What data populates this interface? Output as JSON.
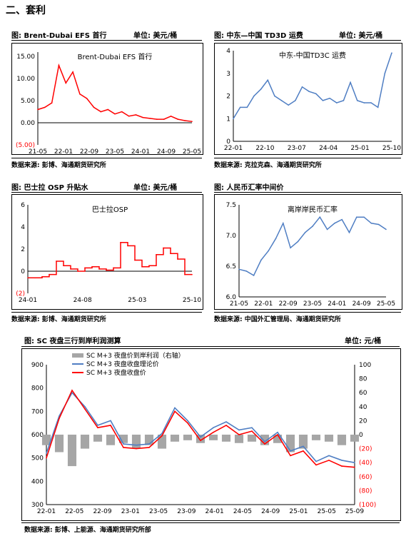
{
  "section_title": "二、套利",
  "panels": {
    "p1": {
      "caption": "图: Brent-Dubai EFS 首行",
      "unit": "单位: 美元/桶",
      "source": "数据来源: 彭博、海通期货研究所"
    },
    "p2": {
      "caption": "图: 中东—中国 TD3D 运费",
      "unit": "单位: 美元/桶",
      "source": "数据来源: 克拉克森、海通期货研究所"
    },
    "p3": {
      "caption": "图: 巴士拉 OSP 升贴水",
      "unit": "单位: 美元/桶",
      "source": "数据来源: 彭博、海通期货研究所"
    },
    "p4": {
      "caption": "图: 人民币汇率中间价",
      "unit": "",
      "source": "数据来源: 中国外汇管理局、海通期货研究所"
    },
    "p5": {
      "caption": "图: SC 夜盘三行到岸利润测算",
      "unit": "单位: 元/桶",
      "source": "数据来源: 彭博、上能源、海通期货研究所部"
    }
  },
  "chart_data": [
    {
      "type": "line",
      "title": "Brent-Dubai EFS 首行",
      "x_ticks": [
        "21-05",
        "22-01",
        "22-09",
        "23-05",
        "24-01",
        "24-09",
        "25-05"
      ],
      "y_ticks": [
        "15.00",
        "10.00",
        "5.00",
        "0.00",
        "(5.00)"
      ],
      "ylim": [
        -5,
        16
      ],
      "x": [
        "21-05",
        "21-09",
        "22-01",
        "22-03",
        "22-04",
        "22-06",
        "22-08",
        "22-10",
        "22-12",
        "23-02",
        "23-05",
        "23-08",
        "23-11",
        "24-01",
        "24-04",
        "24-07",
        "24-09",
        "24-12",
        "25-03",
        "25-05",
        "25-08",
        "25-10",
        "25-12"
      ],
      "values": [
        3.0,
        3.5,
        4.5,
        13.0,
        9.0,
        11.5,
        6.5,
        5.5,
        3.5,
        2.5,
        3.0,
        2.0,
        2.5,
        1.5,
        1.8,
        1.2,
        1.0,
        0.8,
        0.8,
        1.5,
        0.8,
        0.5,
        0.3
      ],
      "colors": {
        "line": "#ff0000",
        "negative_tick": "#ff0000"
      }
    },
    {
      "type": "line",
      "title": "中东-中国TD3C 运费",
      "x_ticks": [
        "22-01",
        "22-10",
        "23-07",
        "24-04",
        "25-01",
        "25-10"
      ],
      "y_ticks": [
        "4",
        "3",
        "2",
        "1",
        "0"
      ],
      "ylim": [
        0,
        4
      ],
      "x": [
        "22-01",
        "22-03",
        "22-06",
        "22-09",
        "22-11",
        "23-01",
        "23-03",
        "23-05",
        "23-07",
        "23-09",
        "23-11",
        "24-01",
        "24-03",
        "24-05",
        "24-07",
        "24-09",
        "24-11",
        "25-01",
        "25-03",
        "25-05",
        "25-07",
        "25-09",
        "25-11",
        "25-12"
      ],
      "values": [
        1.0,
        1.5,
        1.5,
        2.0,
        2.3,
        2.7,
        2.0,
        1.8,
        1.6,
        1.8,
        2.4,
        2.2,
        2.1,
        1.8,
        1.9,
        1.7,
        1.8,
        2.6,
        1.8,
        1.7,
        1.7,
        1.5,
        3.0,
        3.9
      ],
      "colors": {
        "line": "#4f7ec3"
      }
    },
    {
      "type": "line",
      "title": "巴士拉OSP",
      "x_ticks": [
        "24-01",
        "24-08",
        "25-03",
        "25-10"
      ],
      "y_ticks": [
        "6",
        "4",
        "2",
        "0",
        "(2)"
      ],
      "ylim": [
        -2,
        6
      ],
      "x": [
        "24-01",
        "24-02",
        "24-03",
        "24-04",
        "24-05",
        "24-06",
        "24-07",
        "24-08",
        "24-09",
        "24-10",
        "24-11",
        "24-12",
        "25-01",
        "25-02",
        "25-03",
        "25-04",
        "25-05",
        "25-06",
        "25-07",
        "25-08",
        "25-09",
        "25-10",
        "25-11",
        "25-12"
      ],
      "values": [
        -0.6,
        -0.6,
        -0.5,
        -0.3,
        0.9,
        0.5,
        0.2,
        0.0,
        0.3,
        0.4,
        0.2,
        0.1,
        0.3,
        2.6,
        2.3,
        1.0,
        0.4,
        0.5,
        1.5,
        2.1,
        1.6,
        1.1,
        -0.3,
        -0.3
      ],
      "colors": {
        "line": "#ff0000",
        "negative_tick": "#ff0000"
      }
    },
    {
      "type": "line",
      "title": "离岸岸民币汇率",
      "x_ticks": [
        "21-05",
        "22-01",
        "22-09",
        "23-05",
        "24-01",
        "24-09",
        "25-05"
      ],
      "y_ticks": [
        "7.5",
        "7.0",
        "6.5",
        "6.0"
      ],
      "ylim": [
        6.0,
        7.5
      ],
      "x": [
        "21-05",
        "21-09",
        "22-01",
        "22-04",
        "22-06",
        "22-09",
        "22-11",
        "23-01",
        "23-03",
        "23-05",
        "23-07",
        "23-09",
        "23-12",
        "24-03",
        "24-06",
        "24-09",
        "24-12",
        "25-03",
        "25-05",
        "25-08",
        "25-11"
      ],
      "values": [
        6.45,
        6.42,
        6.35,
        6.6,
        6.75,
        6.95,
        7.2,
        6.8,
        6.9,
        7.05,
        7.15,
        7.3,
        7.1,
        7.2,
        7.26,
        7.05,
        7.3,
        7.3,
        7.2,
        7.18,
        7.1
      ],
      "colors": {
        "line": "#4f7ec3"
      }
    },
    {
      "type": "line",
      "title": "",
      "x_ticks": [
        "22-01",
        "22-05",
        "22-09",
        "23-01",
        "23-05",
        "23-09",
        "24-01",
        "24-05",
        "24-09",
        "25-01",
        "25-05",
        "25-09"
      ],
      "y_ticks_left": [
        "900",
        "800",
        "700",
        "600",
        "500",
        "400",
        "300"
      ],
      "y_ticks_right": [
        "100",
        "80",
        "60",
        "40",
        "20",
        "0",
        "(20)",
        "(40)",
        "(60)",
        "(80)",
        "(100)"
      ],
      "ylim_left": [
        300,
        900
      ],
      "ylim_right": [
        -100,
        100
      ],
      "x": [
        "22-01",
        "22-03",
        "22-05",
        "22-07",
        "22-09",
        "22-11",
        "23-01",
        "23-03",
        "23-05",
        "23-07",
        "23-09",
        "23-11",
        "24-01",
        "24-03",
        "24-05",
        "24-07",
        "24-09",
        "24-11",
        "25-01",
        "25-03",
        "25-05",
        "25-07",
        "25-09",
        "25-11",
        "25-12"
      ],
      "series": [
        {
          "name": "SC M+3 夜盘价到岸利润（右轴）",
          "type": "bar",
          "axis": "right",
          "values": [
            -15,
            -25,
            -45,
            -20,
            -10,
            -15,
            -12,
            -20,
            -15,
            -20,
            -10,
            -8,
            -12,
            -8,
            -10,
            -12,
            -10,
            -15,
            -12,
            -25,
            -20,
            -8,
            -10,
            -15,
            -10
          ]
        },
        {
          "name": "SC M+3 夜盘收盘理论价",
          "type": "line",
          "axis": "left",
          "values": [
            520,
            680,
            780,
            720,
            640,
            660,
            560,
            555,
            560,
            605,
            715,
            660,
            590,
            630,
            655,
            620,
            630,
            570,
            610,
            530,
            550,
            485,
            510,
            490,
            480
          ]
        },
        {
          "name": "SC M+3 夜盘收盘价",
          "type": "line",
          "axis": "left",
          "values": [
            500,
            670,
            790,
            710,
            630,
            640,
            545,
            540,
            545,
            595,
            700,
            650,
            575,
            610,
            640,
            600,
            615,
            560,
            600,
            510,
            530,
            470,
            490,
            465,
            460
          ]
        }
      ],
      "colors": {
        "bars": "#a6a6a6",
        "theory": "#4f7ec3",
        "close": "#ff0000",
        "negative_tick": "#ff0000"
      }
    }
  ]
}
